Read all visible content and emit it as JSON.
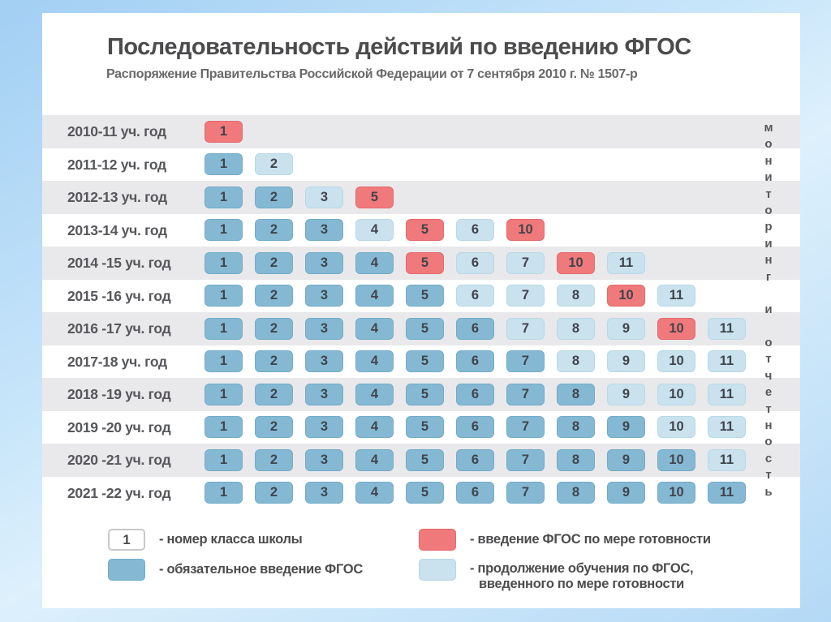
{
  "slide": {
    "title": "Последовательность действий по введению ФГОС",
    "subtitle": "Распоряжение Правительства Российской Федерации от 7 сентября 2010 г. № 1507-р",
    "vertical_label": "мониторинг и отчетность"
  },
  "colors": {
    "mandatory": "#85b9d3",
    "mandatory_border": "#72abc8",
    "readiness": "#f0797b",
    "readiness_border": "#e4696c",
    "continuation": "#c9e2ed",
    "continuation_border": "#b7d8e7",
    "row_stripe": "#e9e9eb"
  },
  "legend": {
    "grade_number": {
      "symbol": "1",
      "label": "- номер класса школы"
    },
    "mandatory": {
      "label": "- обязательное введение ФГОС"
    },
    "readiness": {
      "label": "- введение ФГОС по мере готовности"
    },
    "continuation": {
      "label": "- продолжение обучения по ФГОС,",
      "label2": "введенного по мере готовности"
    }
  },
  "chart_data": {
    "type": "table",
    "title": "Последовательность действий по введению ФГОС",
    "status_meanings": {
      "mandatory": "обязательное введение ФГОС",
      "readiness": "введение ФГОС по мере готовности",
      "continuation": "продолжение обучения по ФГОС, введенного по мере готовности"
    },
    "rows": [
      {
        "year": "2010-11 уч. год",
        "cells": [
          {
            "grade": 1,
            "status": "readiness"
          }
        ]
      },
      {
        "year": "2011-12 уч. год",
        "cells": [
          {
            "grade": 1,
            "status": "mandatory"
          },
          {
            "grade": 2,
            "status": "continuation"
          }
        ]
      },
      {
        "year": "2012-13 уч. год",
        "cells": [
          {
            "grade": 1,
            "status": "mandatory"
          },
          {
            "grade": 2,
            "status": "mandatory"
          },
          {
            "grade": 3,
            "status": "continuation"
          },
          {
            "grade": 5,
            "status": "readiness"
          }
        ]
      },
      {
        "year": "2013-14 уч. год",
        "cells": [
          {
            "grade": 1,
            "status": "mandatory"
          },
          {
            "grade": 2,
            "status": "mandatory"
          },
          {
            "grade": 3,
            "status": "mandatory"
          },
          {
            "grade": 4,
            "status": "continuation"
          },
          {
            "grade": 5,
            "status": "readiness"
          },
          {
            "grade": 6,
            "status": "continuation"
          },
          {
            "grade": 10,
            "status": "readiness"
          }
        ]
      },
      {
        "year": "2014 -15 уч. год",
        "cells": [
          {
            "grade": 1,
            "status": "mandatory"
          },
          {
            "grade": 2,
            "status": "mandatory"
          },
          {
            "grade": 3,
            "status": "mandatory"
          },
          {
            "grade": 4,
            "status": "mandatory"
          },
          {
            "grade": 5,
            "status": "readiness"
          },
          {
            "grade": 6,
            "status": "continuation"
          },
          {
            "grade": 7,
            "status": "continuation"
          },
          {
            "grade": 10,
            "status": "readiness"
          },
          {
            "grade": 11,
            "status": "continuation"
          }
        ]
      },
      {
        "year": "2015 -16 уч. год",
        "cells": [
          {
            "grade": 1,
            "status": "mandatory"
          },
          {
            "grade": 2,
            "status": "mandatory"
          },
          {
            "grade": 3,
            "status": "mandatory"
          },
          {
            "grade": 4,
            "status": "mandatory"
          },
          {
            "grade": 5,
            "status": "mandatory"
          },
          {
            "grade": 6,
            "status": "continuation"
          },
          {
            "grade": 7,
            "status": "continuation"
          },
          {
            "grade": 8,
            "status": "continuation"
          },
          {
            "grade": 10,
            "status": "readiness"
          },
          {
            "grade": 11,
            "status": "continuation"
          }
        ]
      },
      {
        "year": "2016 -17 уч. год",
        "cells": [
          {
            "grade": 1,
            "status": "mandatory"
          },
          {
            "grade": 2,
            "status": "mandatory"
          },
          {
            "grade": 3,
            "status": "mandatory"
          },
          {
            "grade": 4,
            "status": "mandatory"
          },
          {
            "grade": 5,
            "status": "mandatory"
          },
          {
            "grade": 6,
            "status": "mandatory"
          },
          {
            "grade": 7,
            "status": "continuation"
          },
          {
            "grade": 8,
            "status": "continuation"
          },
          {
            "grade": 9,
            "status": "continuation"
          },
          {
            "grade": 10,
            "status": "readiness"
          },
          {
            "grade": 11,
            "status": "continuation"
          }
        ]
      },
      {
        "year": "2017-18 уч. год",
        "cells": [
          {
            "grade": 1,
            "status": "mandatory"
          },
          {
            "grade": 2,
            "status": "mandatory"
          },
          {
            "grade": 3,
            "status": "mandatory"
          },
          {
            "grade": 4,
            "status": "mandatory"
          },
          {
            "grade": 5,
            "status": "mandatory"
          },
          {
            "grade": 6,
            "status": "mandatory"
          },
          {
            "grade": 7,
            "status": "mandatory"
          },
          {
            "grade": 8,
            "status": "continuation"
          },
          {
            "grade": 9,
            "status": "continuation"
          },
          {
            "grade": 10,
            "status": "continuation"
          },
          {
            "grade": 11,
            "status": "continuation"
          }
        ]
      },
      {
        "year": "2018 -19 уч. год",
        "cells": [
          {
            "grade": 1,
            "status": "mandatory"
          },
          {
            "grade": 2,
            "status": "mandatory"
          },
          {
            "grade": 3,
            "status": "mandatory"
          },
          {
            "grade": 4,
            "status": "mandatory"
          },
          {
            "grade": 5,
            "status": "mandatory"
          },
          {
            "grade": 6,
            "status": "mandatory"
          },
          {
            "grade": 7,
            "status": "mandatory"
          },
          {
            "grade": 8,
            "status": "mandatory"
          },
          {
            "grade": 9,
            "status": "continuation"
          },
          {
            "grade": 10,
            "status": "continuation"
          },
          {
            "grade": 11,
            "status": "continuation"
          }
        ]
      },
      {
        "year": "2019 -20 уч. год",
        "cells": [
          {
            "grade": 1,
            "status": "mandatory"
          },
          {
            "grade": 2,
            "status": "mandatory"
          },
          {
            "grade": 3,
            "status": "mandatory"
          },
          {
            "grade": 4,
            "status": "mandatory"
          },
          {
            "grade": 5,
            "status": "mandatory"
          },
          {
            "grade": 6,
            "status": "mandatory"
          },
          {
            "grade": 7,
            "status": "mandatory"
          },
          {
            "grade": 8,
            "status": "mandatory"
          },
          {
            "grade": 9,
            "status": "mandatory"
          },
          {
            "grade": 10,
            "status": "continuation"
          },
          {
            "grade": 11,
            "status": "continuation"
          }
        ]
      },
      {
        "year": "2020 -21 уч. год",
        "cells": [
          {
            "grade": 1,
            "status": "mandatory"
          },
          {
            "grade": 2,
            "status": "mandatory"
          },
          {
            "grade": 3,
            "status": "mandatory"
          },
          {
            "grade": 4,
            "status": "mandatory"
          },
          {
            "grade": 5,
            "status": "mandatory"
          },
          {
            "grade": 6,
            "status": "mandatory"
          },
          {
            "grade": 7,
            "status": "mandatory"
          },
          {
            "grade": 8,
            "status": "mandatory"
          },
          {
            "grade": 9,
            "status": "mandatory"
          },
          {
            "grade": 10,
            "status": "mandatory"
          },
          {
            "grade": 11,
            "status": "continuation"
          }
        ]
      },
      {
        "year": "2021 -22 уч. год",
        "cells": [
          {
            "grade": 1,
            "status": "mandatory"
          },
          {
            "grade": 2,
            "status": "mandatory"
          },
          {
            "grade": 3,
            "status": "mandatory"
          },
          {
            "grade": 4,
            "status": "mandatory"
          },
          {
            "grade": 5,
            "status": "mandatory"
          },
          {
            "grade": 6,
            "status": "mandatory"
          },
          {
            "grade": 7,
            "status": "mandatory"
          },
          {
            "grade": 8,
            "status": "mandatory"
          },
          {
            "grade": 9,
            "status": "mandatory"
          },
          {
            "grade": 10,
            "status": "mandatory"
          },
          {
            "grade": 11,
            "status": "mandatory"
          }
        ]
      }
    ]
  }
}
